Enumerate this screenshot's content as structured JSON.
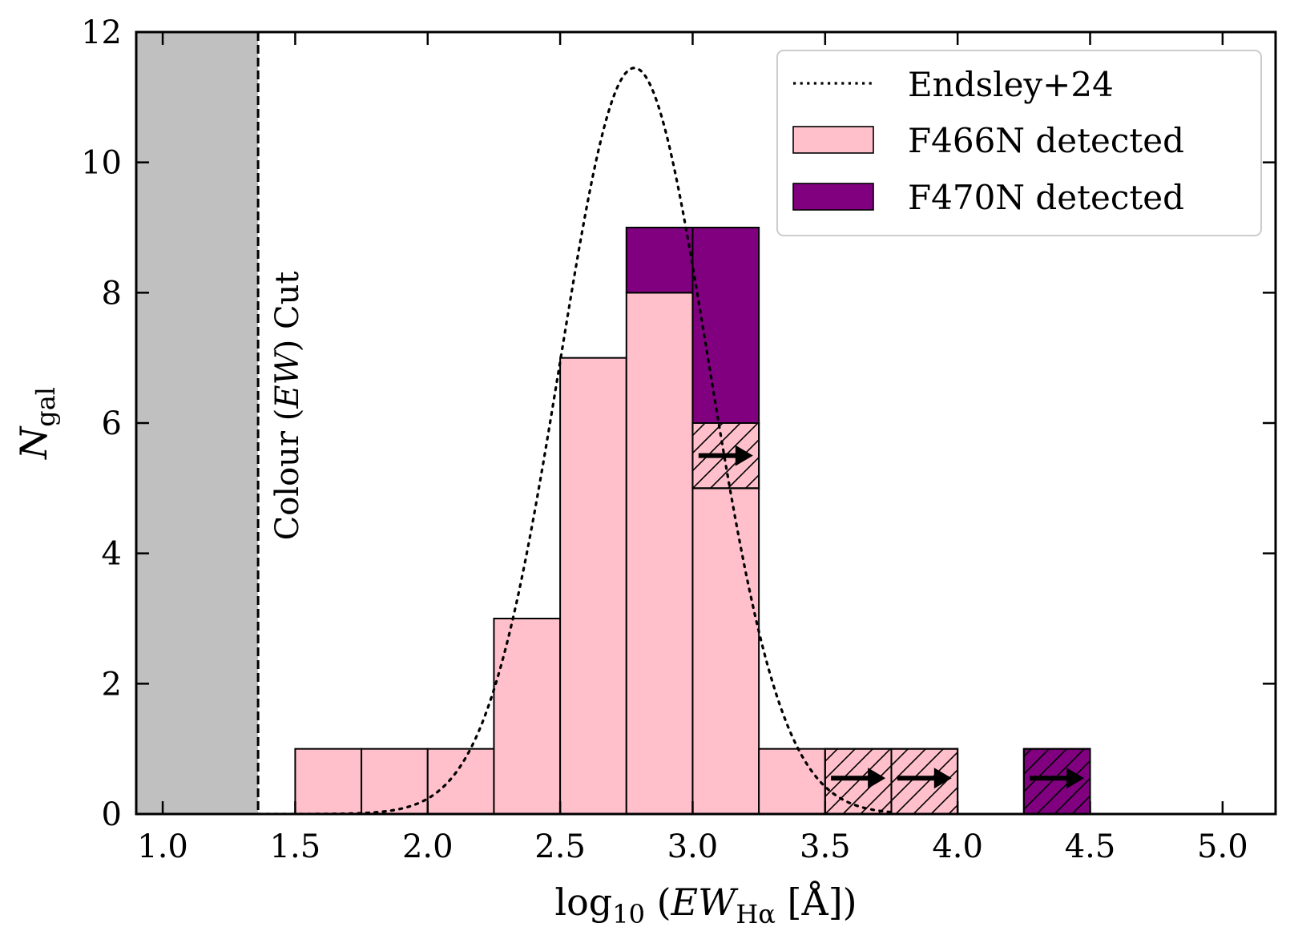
{
  "chart_data": {
    "type": "bar",
    "title": "",
    "xlabel": {
      "prefix": "log",
      "sub1": "10",
      "open": " (",
      "var": "EW",
      "sub2": "Hα",
      "unit": " [Å])"
    },
    "ylabel": {
      "var": "N",
      "sub": "gal"
    },
    "xlim": [
      0.9,
      5.2
    ],
    "ylim": [
      0,
      12
    ],
    "xticks": [
      1.0,
      1.5,
      2.0,
      2.5,
      3.0,
      3.5,
      4.0,
      4.5,
      5.0
    ],
    "xtick_labels": [
      "1.0",
      "1.5",
      "2.0",
      "2.5",
      "3.0",
      "3.5",
      "4.0",
      "4.5",
      "5.0"
    ],
    "yticks": [
      0,
      2,
      4,
      6,
      8,
      10,
      12
    ],
    "ytick_labels": [
      "0",
      "2",
      "4",
      "6",
      "8",
      "10",
      "12"
    ],
    "bin_width": 0.25,
    "bin_starts": [
      1.5,
      1.75,
      2.0,
      2.25,
      2.5,
      2.75,
      3.0,
      3.25,
      3.5,
      3.75,
      4.0,
      4.25
    ],
    "series": [
      {
        "name": "F466N detected",
        "color": "#ffc0cb",
        "values": [
          1,
          1,
          1,
          3,
          7,
          8,
          5,
          1,
          0,
          0,
          0,
          0
        ]
      },
      {
        "name": "F466N lower limit",
        "color": "#ffc0cb",
        "hatched": true,
        "values": [
          0,
          0,
          0,
          0,
          0,
          0,
          1,
          0,
          1,
          1,
          0,
          0
        ]
      },
      {
        "name": "F470N detected",
        "color": "#800080",
        "values": [
          0,
          0,
          0,
          0,
          0,
          1,
          3,
          0,
          0,
          0,
          0,
          0
        ]
      },
      {
        "name": "F470N lower limit",
        "color": "#800080",
        "hatched": true,
        "values": [
          0,
          0,
          0,
          0,
          0,
          0,
          0,
          0,
          0,
          0,
          0,
          1
        ]
      }
    ],
    "lower_limit_arrows": [
      {
        "x": 3.125,
        "y": 5.5
      },
      {
        "x": 3.625,
        "y": 0.55
      },
      {
        "x": 3.875,
        "y": 0.55
      },
      {
        "x": 4.375,
        "y": 0.55
      }
    ],
    "model_curve": {
      "name": "Endsley+24",
      "style": "dotted",
      "mu": 2.78,
      "sigma": 0.28,
      "amplitude": 11.45,
      "x_range": [
        1.36,
        3.75
      ]
    },
    "cut": {
      "x": 1.36,
      "label": {
        "pre": "Colour (",
        "var": "EW",
        "post": ") Cut"
      },
      "shaded_range": [
        0.9,
        1.36
      ],
      "shade_color": "#c0c0c0"
    },
    "legend": {
      "placement": "top-right",
      "entries": [
        {
          "label": "Endsley+24",
          "kind": "dotted"
        },
        {
          "label": "F466N detected",
          "kind": "box",
          "color": "#ffc0cb"
        },
        {
          "label": "F470N detected",
          "kind": "box",
          "color": "#800080"
        }
      ]
    },
    "grid": false
  }
}
